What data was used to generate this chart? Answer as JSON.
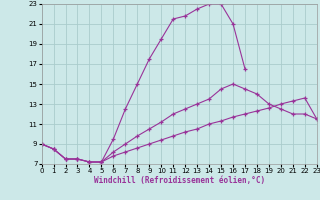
{
  "xlabel": "Windchill (Refroidissement éolien,°C)",
  "background_color": "#cce8e8",
  "grid_color": "#aacccc",
  "line_color": "#993399",
  "xlim": [
    0,
    23
  ],
  "ylim": [
    7,
    23
  ],
  "xticks": [
    0,
    1,
    2,
    3,
    4,
    5,
    6,
    7,
    8,
    9,
    10,
    11,
    12,
    13,
    14,
    15,
    16,
    17,
    18,
    19,
    20,
    21,
    22,
    23
  ],
  "yticks": [
    7,
    9,
    11,
    13,
    15,
    17,
    19,
    21,
    23
  ],
  "line1_x": [
    0,
    1,
    2,
    3,
    4,
    5,
    6,
    7,
    8,
    9,
    10,
    11,
    12,
    13,
    14,
    15,
    16,
    17
  ],
  "line1_y": [
    9.0,
    8.5,
    7.5,
    7.5,
    7.2,
    7.2,
    9.5,
    12.5,
    15.0,
    17.5,
    19.5,
    21.5,
    21.8,
    22.5,
    23.0,
    23.0,
    21.0,
    16.5
  ],
  "line2_x": [
    0,
    1,
    2,
    3,
    4,
    5,
    6,
    7,
    8,
    9,
    10,
    11,
    12,
    13,
    14,
    15,
    16,
    17,
    18,
    19,
    20,
    21,
    22,
    23
  ],
  "line2_y": [
    9.0,
    8.5,
    7.5,
    7.5,
    7.2,
    7.2,
    8.2,
    9.0,
    9.8,
    10.5,
    11.2,
    12.0,
    12.5,
    13.0,
    13.5,
    14.5,
    15.0,
    14.5,
    14.0,
    13.0,
    12.5,
    12.0,
    12.0,
    11.5
  ],
  "line3_x": [
    0,
    1,
    2,
    3,
    4,
    5,
    6,
    7,
    8,
    9,
    10,
    11,
    12,
    13,
    14,
    15,
    16,
    17,
    18,
    19,
    20,
    21,
    22,
    23
  ],
  "line3_y": [
    9.0,
    8.5,
    7.5,
    7.5,
    7.2,
    7.2,
    7.8,
    8.2,
    8.6,
    9.0,
    9.4,
    9.8,
    10.2,
    10.5,
    11.0,
    11.3,
    11.7,
    12.0,
    12.3,
    12.6,
    13.0,
    13.3,
    13.6,
    11.5
  ]
}
